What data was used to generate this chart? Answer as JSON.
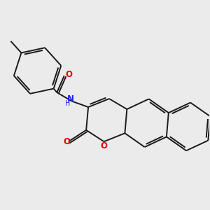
{
  "background_color": "#ebebeb",
  "bond_color": "#1a1a1a",
  "nitrogen_color": "#2020ff",
  "oxygen_color": "#dd0000",
  "lw": 1.4,
  "figsize": [
    3.0,
    3.0
  ],
  "dpi": 100,
  "xlim": [
    0,
    10
  ],
  "ylim": [
    0,
    10
  ]
}
